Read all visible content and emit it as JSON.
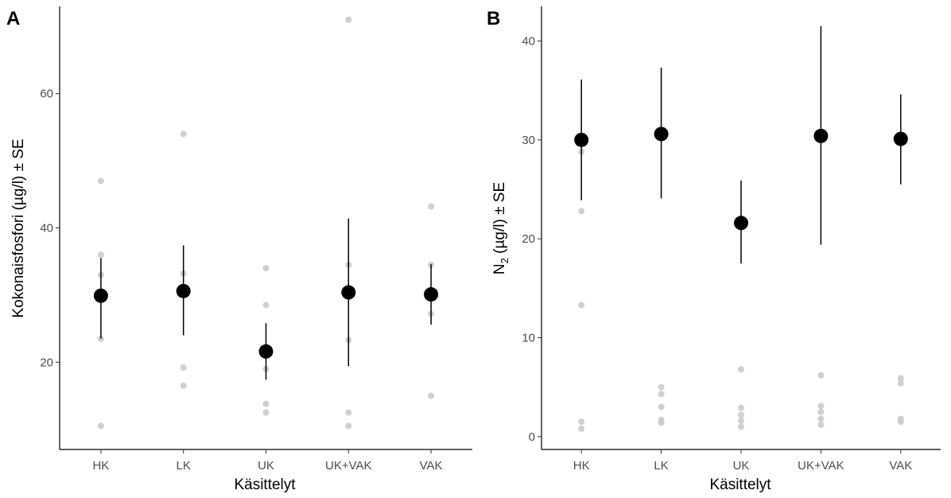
{
  "chart_data": [
    {
      "panel": "A",
      "type": "scatter",
      "xlabel": "Käsittelyt",
      "ylabel": "Kokonaisfosfori (µg/l) ± SE",
      "ylim": [
        7,
        73
      ],
      "yticks": [
        20,
        40,
        60
      ],
      "categories": [
        "HK",
        "LK",
        "UK",
        "UK+VAK",
        "VAK"
      ],
      "grid": false,
      "raw_points": [
        {
          "category": "HK",
          "values": [
            10.5,
            23.5,
            33.0,
            36.0,
            47.0
          ]
        },
        {
          "category": "LK",
          "values": [
            16.5,
            19.2,
            33.2,
            54.0
          ]
        },
        {
          "category": "UK",
          "values": [
            12.5,
            13.8,
            19.0,
            28.5,
            34.0
          ]
        },
        {
          "category": "UK+VAK",
          "values": [
            10.5,
            12.5,
            23.3,
            34.5,
            71.0
          ]
        },
        {
          "category": "VAK",
          "values": [
            15.0,
            27.2,
            34.5,
            43.2
          ]
        }
      ],
      "means": [
        {
          "category": "HK",
          "mean": 29.9,
          "lower": 23.5,
          "upper": 35.5
        },
        {
          "category": "LK",
          "mean": 30.6,
          "lower": 24.0,
          "upper": 37.4
        },
        {
          "category": "UK",
          "mean": 21.6,
          "lower": 17.4,
          "upper": 25.8
        },
        {
          "category": "UK+VAK",
          "mean": 30.4,
          "lower": 19.4,
          "upper": 41.4
        },
        {
          "category": "VAK",
          "mean": 30.1,
          "lower": 25.6,
          "upper": 34.6
        }
      ]
    },
    {
      "panel": "B",
      "type": "scatter",
      "xlabel": "Käsittelyt",
      "ylabel_main": "N",
      "ylabel_sub": "2",
      "ylabel_rest": " (µg/l) ± SE",
      "ylim": [
        -1.3,
        43.5
      ],
      "yticks": [
        0,
        10,
        20,
        30,
        40
      ],
      "categories": [
        "HK",
        "LK",
        "UK",
        "UK+VAK",
        "VAK"
      ],
      "grid": false,
      "raw_points": [
        {
          "category": "HK",
          "values": [
            0.8,
            1.5,
            13.3,
            22.8,
            28.8
          ]
        },
        {
          "category": "LK",
          "values": [
            1.4,
            1.7,
            3.0,
            4.3,
            5.0
          ]
        },
        {
          "category": "UK",
          "values": [
            1.0,
            1.6,
            2.2,
            2.9,
            6.8
          ]
        },
        {
          "category": "UK+VAK",
          "values": [
            1.2,
            1.8,
            2.5,
            3.1,
            6.2
          ]
        },
        {
          "category": "VAK",
          "values": [
            1.5,
            1.8,
            5.4,
            5.9
          ]
        }
      ],
      "means": [
        {
          "category": "HK",
          "mean": 30.0,
          "lower": 23.9,
          "upper": 36.1
        },
        {
          "category": "LK",
          "mean": 30.6,
          "lower": 24.1,
          "upper": 37.3
        },
        {
          "category": "UK",
          "mean": 21.6,
          "lower": 17.5,
          "upper": 25.9
        },
        {
          "category": "UK+VAK",
          "mean": 30.4,
          "lower": 19.4,
          "upper": 41.5
        },
        {
          "category": "VAK",
          "mean": 30.1,
          "lower": 25.5,
          "upper": 34.6
        }
      ]
    }
  ],
  "colors": {
    "raw_point": "#c8c8c8",
    "mean_point": "#000000",
    "error_bar": "#000000",
    "axis": "#000000",
    "tick_label": "#4d4d4d"
  }
}
